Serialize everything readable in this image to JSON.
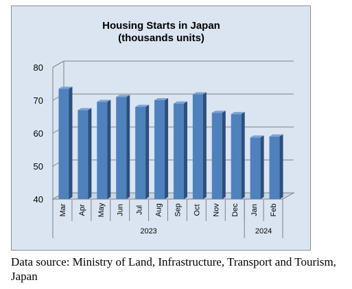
{
  "chart_data": {
    "type": "bar",
    "title_lines": [
      "Housing Starts in Japan",
      "(thousands units)"
    ],
    "categories": [
      "Mar",
      "Apr",
      "May",
      "Jun",
      "Jul",
      "Aug",
      "Sep",
      "Oct",
      "Nov",
      "Dec",
      "Jan",
      "Feb"
    ],
    "category_groups": [
      {
        "label": "2023",
        "count": 10
      },
      {
        "label": "2024",
        "count": 2
      }
    ],
    "values": [
      73.5,
      67,
      69.5,
      71,
      68,
      70,
      69,
      71.8,
      66.2,
      65.8,
      58.7,
      59
    ],
    "ylim": [
      40,
      80
    ],
    "yticks": [
      "40",
      "50",
      "60",
      "70",
      "80"
    ],
    "grid": true,
    "colors": {
      "bar_front": "#4f81bd",
      "bar_side": "#2c4f7c",
      "bar_top": "#7ba3d6",
      "background": "#dbe5f1",
      "grid": "#7f7f7f"
    }
  },
  "source_note": "Data source: Ministry of Land, Infrastructure, Transport and Tourism, Japan"
}
